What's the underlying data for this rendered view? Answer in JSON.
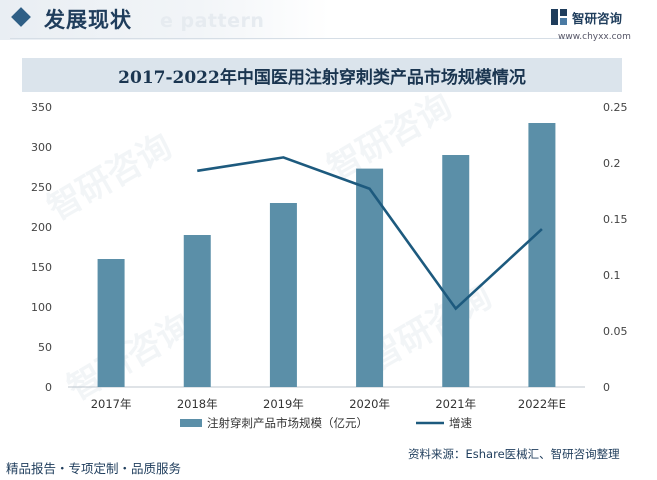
{
  "header": {
    "title": "发展现状",
    "watermark_text": "e pattern",
    "brand_name": "智研咨询",
    "brand_url": "www.chyxx.com"
  },
  "watermark": "智研咨询",
  "chart_data": {
    "type": "bar",
    "title": "2017-2022年中国医用注射穿刺类产品市场规模情况",
    "categories": [
      "2017年",
      "2018年",
      "2019年",
      "2020年",
      "2021年",
      "2022年E"
    ],
    "series": [
      {
        "name": "注射穿刺产品市场规模（亿元）",
        "type": "bar",
        "axis": "left",
        "color": "#5b8fa8",
        "values": [
          160,
          190,
          230,
          273,
          290,
          330
        ]
      },
      {
        "name": "增速",
        "type": "line",
        "axis": "right",
        "color": "#1d5a7e",
        "values": [
          null,
          0.193,
          0.205,
          0.177,
          0.07,
          0.141
        ]
      }
    ],
    "ylim_left": [
      0,
      350
    ],
    "yticks_left": [
      0,
      50,
      100,
      150,
      200,
      250,
      300,
      350
    ],
    "ylim_right": [
      0,
      0.25
    ],
    "yticks_right": [
      0,
      0.05,
      0.1,
      0.15,
      0.2,
      0.25
    ],
    "yticklabels_right": [
      "0",
      "0.05",
      "0.1",
      "0.15",
      "0.2",
      "0.25"
    ],
    "grid": false,
    "legend_position": "bottom-center"
  },
  "footer": {
    "left": "精品报告・专项定制・品质服务",
    "source": "资料来源：Eshare医械汇、智研咨询整理"
  }
}
